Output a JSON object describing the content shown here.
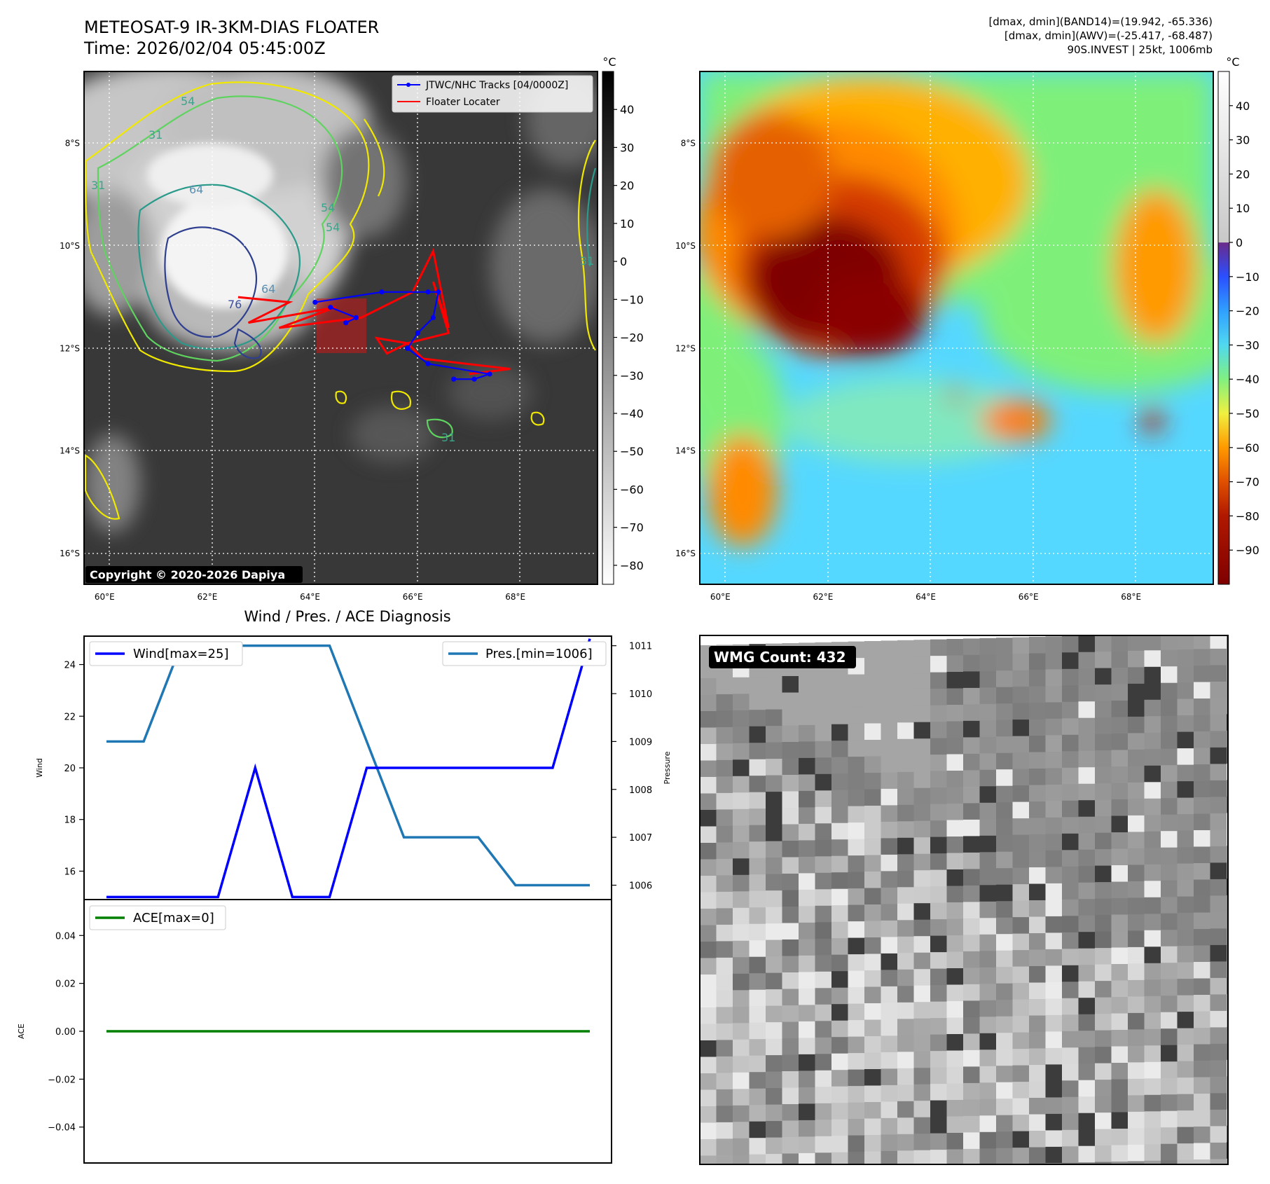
{
  "header": {
    "title_line1": "METEOSAT-9 IR-3KM-DIAS FLOATER",
    "title_line2": "Time: 2026/02/04 05:45:00Z",
    "info_line1": "[dmax, dmin](BAND14)=(19.942, -65.336)",
    "info_line2": "[dmax, dmin](AWV)=(-25.417, -68.487)",
    "info_line3": "90S.INVEST | 25kt, 1006mb"
  },
  "map_axes": {
    "lat_labels": [
      "8°S",
      "10°S",
      "12°S",
      "14°S",
      "16°S"
    ],
    "lat_values": [
      -8,
      -10,
      -12,
      -14,
      -16
    ],
    "lon_labels": [
      "60°E",
      "62°E",
      "64°E",
      "66°E",
      "68°E"
    ],
    "lon_values": [
      60,
      62,
      64,
      66,
      68
    ],
    "lat_range": [
      -6.6,
      -16.6
    ],
    "lon_range": [
      59.6,
      69.6
    ]
  },
  "ir_panel": {
    "copyright": "Copyright © 2020-2026 Dapiya",
    "legend": [
      {
        "label": "JTWC/NHC Tracks [04/0000Z]",
        "color": "#0000ff",
        "marker": "circle"
      },
      {
        "label": "Floater Locater",
        "color": "#ff0000",
        "marker": "none"
      }
    ],
    "contour_labels": [
      "54",
      "54",
      "64",
      "64",
      "76",
      "31",
      "31",
      "54",
      "31",
      "31"
    ],
    "colorbar": {
      "unit": "°C",
      "ticks": [
        "40",
        "30",
        "20",
        "10",
        "0",
        "−10",
        "−20",
        "−30",
        "−40",
        "−50",
        "−60",
        "−70",
        "−80"
      ],
      "tick_values": [
        40,
        30,
        20,
        10,
        0,
        -10,
        -20,
        -30,
        -40,
        -50,
        -60,
        -70,
        -80
      ],
      "range": [
        -85,
        50
      ]
    },
    "jtwc_track": [
      {
        "lon": 64.1,
        "lat": -11.1
      },
      {
        "lon": 65.4,
        "lat": -10.9
      },
      {
        "lon": 66.3,
        "lat": -10.9
      },
      {
        "lon": 66.5,
        "lat": -10.9
      },
      {
        "lon": 66.4,
        "lat": -11.4
      },
      {
        "lon": 66.1,
        "lat": -11.7
      },
      {
        "lon": 65.9,
        "lat": -12.0
      },
      {
        "lon": 66.3,
        "lat": -12.3
      },
      {
        "lon": 67.5,
        "lat": -12.5
      },
      {
        "lon": 67.2,
        "lat": -12.6
      },
      {
        "lon": 66.8,
        "lat": -12.6
      }
    ],
    "jtwc_track_west": [
      {
        "lon": 64.4,
        "lat": -11.2
      },
      {
        "lon": 64.9,
        "lat": -11.4
      },
      {
        "lon": 64.7,
        "lat": -11.5
      }
    ],
    "floater_track": [
      {
        "lon": 62.6,
        "lat": -11.0
      },
      {
        "lon": 63.6,
        "lat": -11.1
      },
      {
        "lon": 62.8,
        "lat": -11.5
      },
      {
        "lon": 64.5,
        "lat": -11.2
      },
      {
        "lon": 63.4,
        "lat": -11.6
      },
      {
        "lon": 65.0,
        "lat": -11.4
      },
      {
        "lon": 66.0,
        "lat": -10.9
      },
      {
        "lon": 66.4,
        "lat": -10.1
      },
      {
        "lon": 66.7,
        "lat": -11.6
      },
      {
        "lon": 66.4,
        "lat": -10.7
      },
      {
        "lon": 66.7,
        "lat": -11.7
      },
      {
        "lon": 65.9,
        "lat": -11.9
      },
      {
        "lon": 65.3,
        "lat": -11.8
      },
      {
        "lon": 65.5,
        "lat": -12.1
      },
      {
        "lon": 65.9,
        "lat": -11.9
      },
      {
        "lon": 66.2,
        "lat": -12.2
      },
      {
        "lon": 67.9,
        "lat": -12.4
      },
      {
        "lon": 67.1,
        "lat": -12.5
      }
    ]
  },
  "awv_panel": {
    "colorbar": {
      "unit": "°C",
      "ticks": [
        "40",
        "30",
        "20",
        "10",
        "0",
        "−10",
        "−20",
        "−30",
        "−40",
        "−50",
        "−60",
        "−70",
        "−80",
        "−90"
      ],
      "tick_values": [
        40,
        30,
        20,
        10,
        0,
        -10,
        -20,
        -30,
        -40,
        -50,
        -60,
        -70,
        -80,
        -90
      ],
      "range": [
        -100,
        50
      ]
    }
  },
  "chart_data": [
    {
      "type": "line",
      "title": "Wind / Pres. / ACE Diagnosis",
      "ylabel": "Wind",
      "y2label": "Pressure",
      "ylim": [
        14.9,
        25.1
      ],
      "y2lim": [
        1005.7,
        1011.2
      ],
      "yticks": [
        16,
        18,
        20,
        22,
        24
      ],
      "y2ticks": [
        1006,
        1007,
        1008,
        1009,
        1010,
        1011
      ],
      "x": [
        0,
        1,
        2,
        3,
        4,
        5,
        6,
        7,
        8,
        9,
        10,
        11,
        12,
        13
      ],
      "series": [
        {
          "name": "Wind[max=25]",
          "axis": "left",
          "color": "#0000ff",
          "values": [
            15,
            15,
            15,
            15,
            20,
            15,
            15,
            20,
            20,
            20,
            20,
            20,
            20,
            25
          ]
        },
        {
          "name": "Pres.[min=1006]",
          "axis": "right",
          "color": "#1f77b4",
          "values": [
            1009,
            1009,
            1011,
            1011,
            1011,
            1011,
            1011,
            1009,
            1007,
            1007,
            1007,
            1006,
            1006,
            1006
          ]
        }
      ],
      "legend": [
        "top-left",
        "top-right"
      ]
    },
    {
      "type": "line",
      "ylabel": "ACE",
      "ylim": [
        -0.055,
        0.055
      ],
      "yticks": [
        "0.04",
        "0.02",
        "0.00",
        "−0.02",
        "−0.04"
      ],
      "ytick_values": [
        0.04,
        0.02,
        0,
        -0.02,
        -0.04
      ],
      "x": [
        0,
        1,
        2,
        3,
        4,
        5,
        6,
        7,
        8,
        9,
        10,
        11,
        12,
        13
      ],
      "series": [
        {
          "name": "ACE[max=0]",
          "color": "#008000",
          "values": [
            0,
            0,
            0,
            0,
            0,
            0,
            0,
            0,
            0,
            0,
            0,
            0,
            0,
            0
          ]
        }
      ],
      "legend": "top-left"
    }
  ],
  "wmg_panel": {
    "label": "WMG Count: 432"
  },
  "colors": {
    "ir_background": "#3a3a3a",
    "contour_yellow": "#f0e800",
    "contour_green": "#5fd35f",
    "contour_teal": "#2a9a8a",
    "contour_navy": "#2f3f8f",
    "awv_cold": "#7f0000",
    "awv_warm": "#55d8ff"
  }
}
